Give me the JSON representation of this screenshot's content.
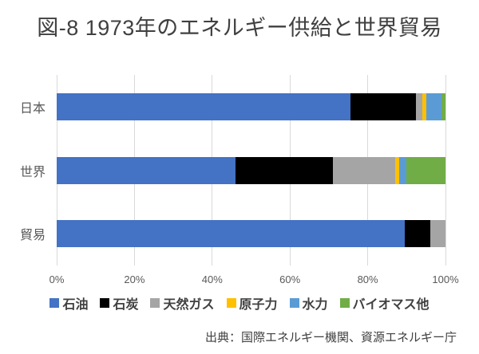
{
  "title": "図-8 1973年のエネルギー供給と世界貿易",
  "source": "出典：国際エネルギー機関、資源エネルギー庁",
  "colors": {
    "gridline": "#D9D9D9",
    "axis_text": "#595959",
    "title_text": "#404040"
  },
  "chart_data": {
    "type": "bar",
    "orientation": "horizontal",
    "stacked": true,
    "title": "図-8 1973年のエネルギー供給と世界貿易",
    "categories": [
      "日本",
      "世界",
      "貿易"
    ],
    "series": [
      {
        "name": "石油",
        "color": "#4472C4",
        "values": [
          75.5,
          46,
          89.5
        ]
      },
      {
        "name": "石炭",
        "color": "#000000",
        "values": [
          17,
          25,
          6.5
        ]
      },
      {
        "name": "天然ガス",
        "color": "#A5A5A5",
        "values": [
          1.5,
          16,
          4
        ]
      },
      {
        "name": "原子力",
        "color": "#FFC000",
        "values": [
          1,
          1,
          0
        ]
      },
      {
        "name": "水力",
        "color": "#5B9BD5",
        "values": [
          4,
          2,
          0
        ]
      },
      {
        "name": "バイオマス他",
        "color": "#70AD47",
        "values": [
          1,
          10,
          0
        ]
      }
    ],
    "x_ticks": [
      "0%",
      "20%",
      "40%",
      "60%",
      "80%",
      "100%"
    ],
    "xlim": [
      0,
      100
    ],
    "grid": "vertical-major",
    "legend_position": "bottom",
    "annotation": "出典：国際エネルギー機関、資源エネルギー庁"
  }
}
